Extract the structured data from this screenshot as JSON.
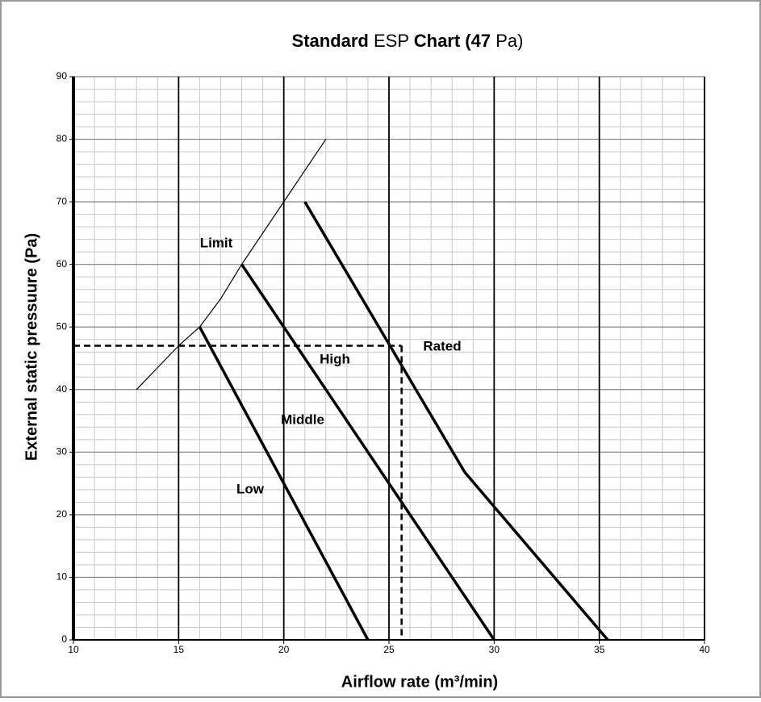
{
  "chart_data": {
    "type": "line",
    "title_parts": [
      {
        "text": "Standard",
        "bold": true
      },
      {
        "text": "ESP",
        "bold": false
      },
      {
        "text": "Chart (47",
        "bold": true
      },
      {
        "text": "Pa)",
        "bold": false
      }
    ],
    "x_label": "Airflow rate (m³/min)",
    "y_label": "External static pressuure (Pa)",
    "xlim": [
      10,
      40
    ],
    "ylim": [
      0,
      90
    ],
    "xticks": [
      10,
      15,
      20,
      25,
      30,
      35,
      40
    ],
    "yticks": [
      0,
      10,
      20,
      30,
      40,
      50,
      60,
      70,
      80,
      90
    ],
    "xminor": [
      11,
      12,
      13,
      14,
      16,
      17,
      18,
      19,
      21,
      22,
      23,
      24,
      26,
      27,
      28,
      29,
      31,
      32,
      33,
      34,
      36,
      37,
      38,
      39
    ],
    "yminor": [
      2,
      4,
      6,
      8,
      12,
      14,
      16,
      18,
      22,
      24,
      26,
      28,
      32,
      34,
      36,
      38,
      42,
      44,
      46,
      48,
      52,
      54,
      56,
      58,
      62,
      64,
      66,
      68,
      72,
      74,
      76,
      78,
      82,
      84,
      86,
      88
    ],
    "grid": true,
    "series": [
      {
        "color": "#000000",
        "thick": false,
        "x": [
          13,
          14,
          15,
          16,
          17,
          18,
          19,
          20,
          21,
          22
        ],
        "values": [
          40,
          43.5,
          47,
          50,
          54.5,
          60,
          65,
          70,
          75,
          80
        ]
      },
      {
        "color": "#000000",
        "thick": true,
        "x": [
          16,
          24
        ],
        "values": [
          50,
          0
        ]
      },
      {
        "color": "#000000",
        "thick": true,
        "x": [
          18,
          30
        ],
        "values": [
          60,
          0
        ]
      },
      {
        "color": "#000000",
        "thick": true,
        "x": [
          21,
          28.6,
          35.4
        ],
        "values": [
          70,
          26.8,
          0
        ]
      }
    ],
    "rated_point": {
      "x": 25.6,
      "y": 47
    },
    "annotations": [
      "Limit",
      "High",
      "Middle",
      "Low",
      "Rated"
    ]
  }
}
